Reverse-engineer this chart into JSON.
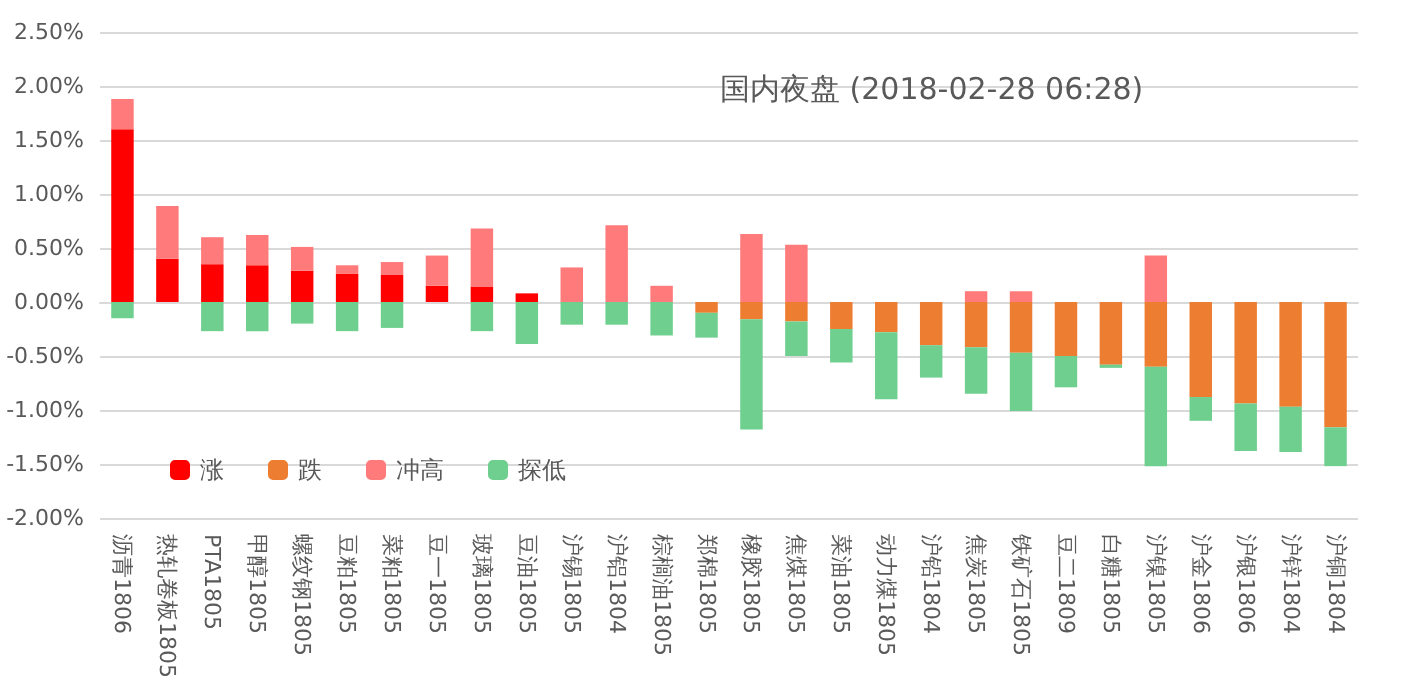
{
  "chart_data": {
    "type": "bar",
    "title": "国内夜盘 (2018-02-28 06:28)",
    "categories": [
      "沥青1806",
      "热轧卷板1805",
      "PTA1805",
      "甲醇1805",
      "螺纹钢1805",
      "豆粕1805",
      "菜粕1805",
      "豆一1805",
      "玻璃1805",
      "豆油1805",
      "沪锡1805",
      "沪铝1804",
      "棕榈油1805",
      "郑棉1805",
      "橡胶1805",
      "焦煤1805",
      "菜油1805",
      "动力煤1805",
      "沪铅1804",
      "焦炭1805",
      "铁矿石1805",
      "豆二1809",
      "白糖1805",
      "沪镍1805",
      "沪金1806",
      "沪银1806",
      "沪锌1804",
      "沪铜1804"
    ],
    "stacked": true,
    "series": [
      {
        "name": "涨",
        "color": "#ff0000",
        "values": [
          1.6,
          0.4,
          0.35,
          0.34,
          0.29,
          0.26,
          0.25,
          0.15,
          0.14,
          0.08,
          null,
          null,
          null,
          null,
          null,
          null,
          null,
          null,
          null,
          null,
          null,
          null,
          null,
          null,
          null,
          null,
          null,
          null
        ]
      },
      {
        "name": "跌",
        "color": "#ed7d31",
        "values": [
          null,
          null,
          null,
          null,
          null,
          null,
          null,
          null,
          null,
          null,
          null,
          null,
          null,
          -0.1,
          -0.16,
          -0.18,
          -0.25,
          -0.28,
          -0.4,
          -0.42,
          -0.47,
          -0.5,
          -0.58,
          -0.6,
          -0.88,
          -0.94,
          -0.97,
          -1.16
        ]
      },
      {
        "name": "冲高",
        "color": "#ff7a7a",
        "values": [
          0.28,
          0.49,
          0.25,
          0.28,
          0.22,
          0.08,
          0.12,
          0.28,
          0.54,
          null,
          0.32,
          0.71,
          0.15,
          null,
          0.63,
          0.53,
          null,
          null,
          null,
          0.1,
          0.1,
          null,
          null,
          0.43,
          null,
          null,
          null,
          null
        ]
      },
      {
        "name": "探低",
        "color": "#6fcf8f",
        "values": [
          -0.15,
          null,
          -0.27,
          -0.27,
          -0.2,
          -0.27,
          -0.24,
          null,
          -0.27,
          -0.39,
          -0.21,
          -0.21,
          -0.31,
          -0.23,
          -1.02,
          -0.32,
          -0.31,
          -0.62,
          -0.3,
          -0.43,
          -0.54,
          -0.29,
          -0.03,
          -0.92,
          -0.22,
          -0.44,
          -0.42,
          -0.36
        ]
      }
    ],
    "ylim": [
      -2.0,
      2.5
    ],
    "yticks": [
      {
        "value": -2.0,
        "label": "-2.00%"
      },
      {
        "value": -1.5,
        "label": "-1.50%"
      },
      {
        "value": -1.0,
        "label": "-1.00%"
      },
      {
        "value": -0.5,
        "label": "-0.50%"
      },
      {
        "value": 0,
        "label": "0.00%"
      },
      {
        "value": 0.5,
        "label": "0.50%"
      },
      {
        "value": 1.0,
        "label": "1.00%"
      },
      {
        "value": 1.5,
        "label": "1.50%"
      },
      {
        "value": 2.0,
        "label": "2.00%"
      },
      {
        "value": 2.5,
        "label": "2.50%"
      }
    ],
    "grid": true,
    "legend": "bottom left"
  }
}
